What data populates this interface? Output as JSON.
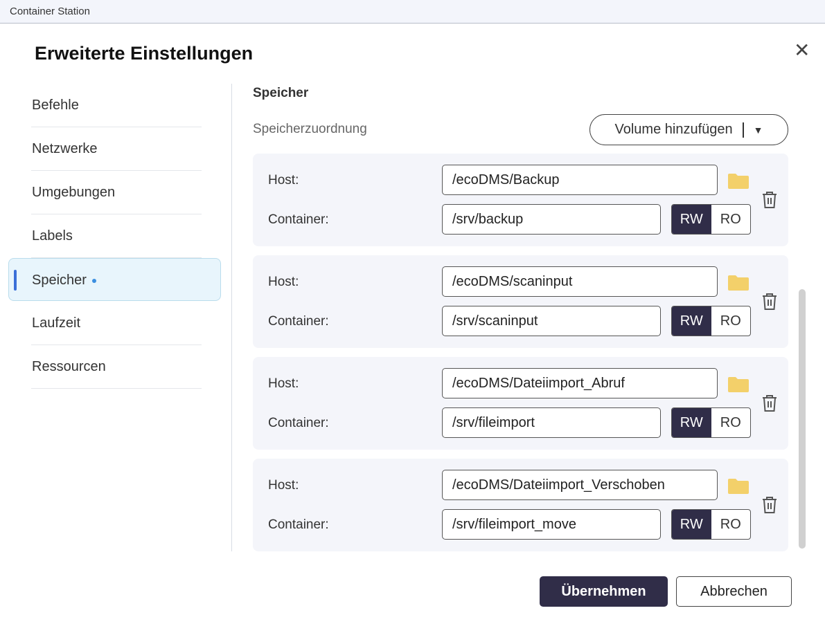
{
  "window": {
    "title": "Container Station"
  },
  "dialog": {
    "title": "Erweiterte Einstellungen",
    "close_icon": "close-icon"
  },
  "nav": {
    "items": [
      {
        "label": "Befehle"
      },
      {
        "label": "Netzwerke"
      },
      {
        "label": "Umgebungen"
      },
      {
        "label": "Labels"
      },
      {
        "label": "Speicher",
        "selected": true
      },
      {
        "label": "Laufzeit"
      },
      {
        "label": "Ressourcen"
      }
    ]
  },
  "storage": {
    "section_title": "Speicher",
    "mapping_label": "Speicherzuordnung",
    "add_volume_label": "Volume hinzufügen",
    "host_label": "Host:",
    "container_label": "Container:",
    "rw_label": "RW",
    "ro_label": "RO",
    "mappings": [
      {
        "host": "/ecoDMS/Backup",
        "container": "/srv/backup",
        "mode": "RW"
      },
      {
        "host": "/ecoDMS/scaninput",
        "container": "/srv/scaninput",
        "mode": "RW"
      },
      {
        "host": "/ecoDMS/Dateiimport_Abruf",
        "container": "/srv/fileimport",
        "mode": "RW"
      },
      {
        "host": "/ecoDMS/Dateiimport_Verschoben",
        "container": "/srv/fileimport_move",
        "mode": "RW"
      }
    ]
  },
  "footer": {
    "apply_label": "Übernehmen",
    "cancel_label": "Abbrechen"
  },
  "colors": {
    "accent": "#302d48",
    "folder": "#f3d06a",
    "selected_bg": "#e8f5fc"
  }
}
